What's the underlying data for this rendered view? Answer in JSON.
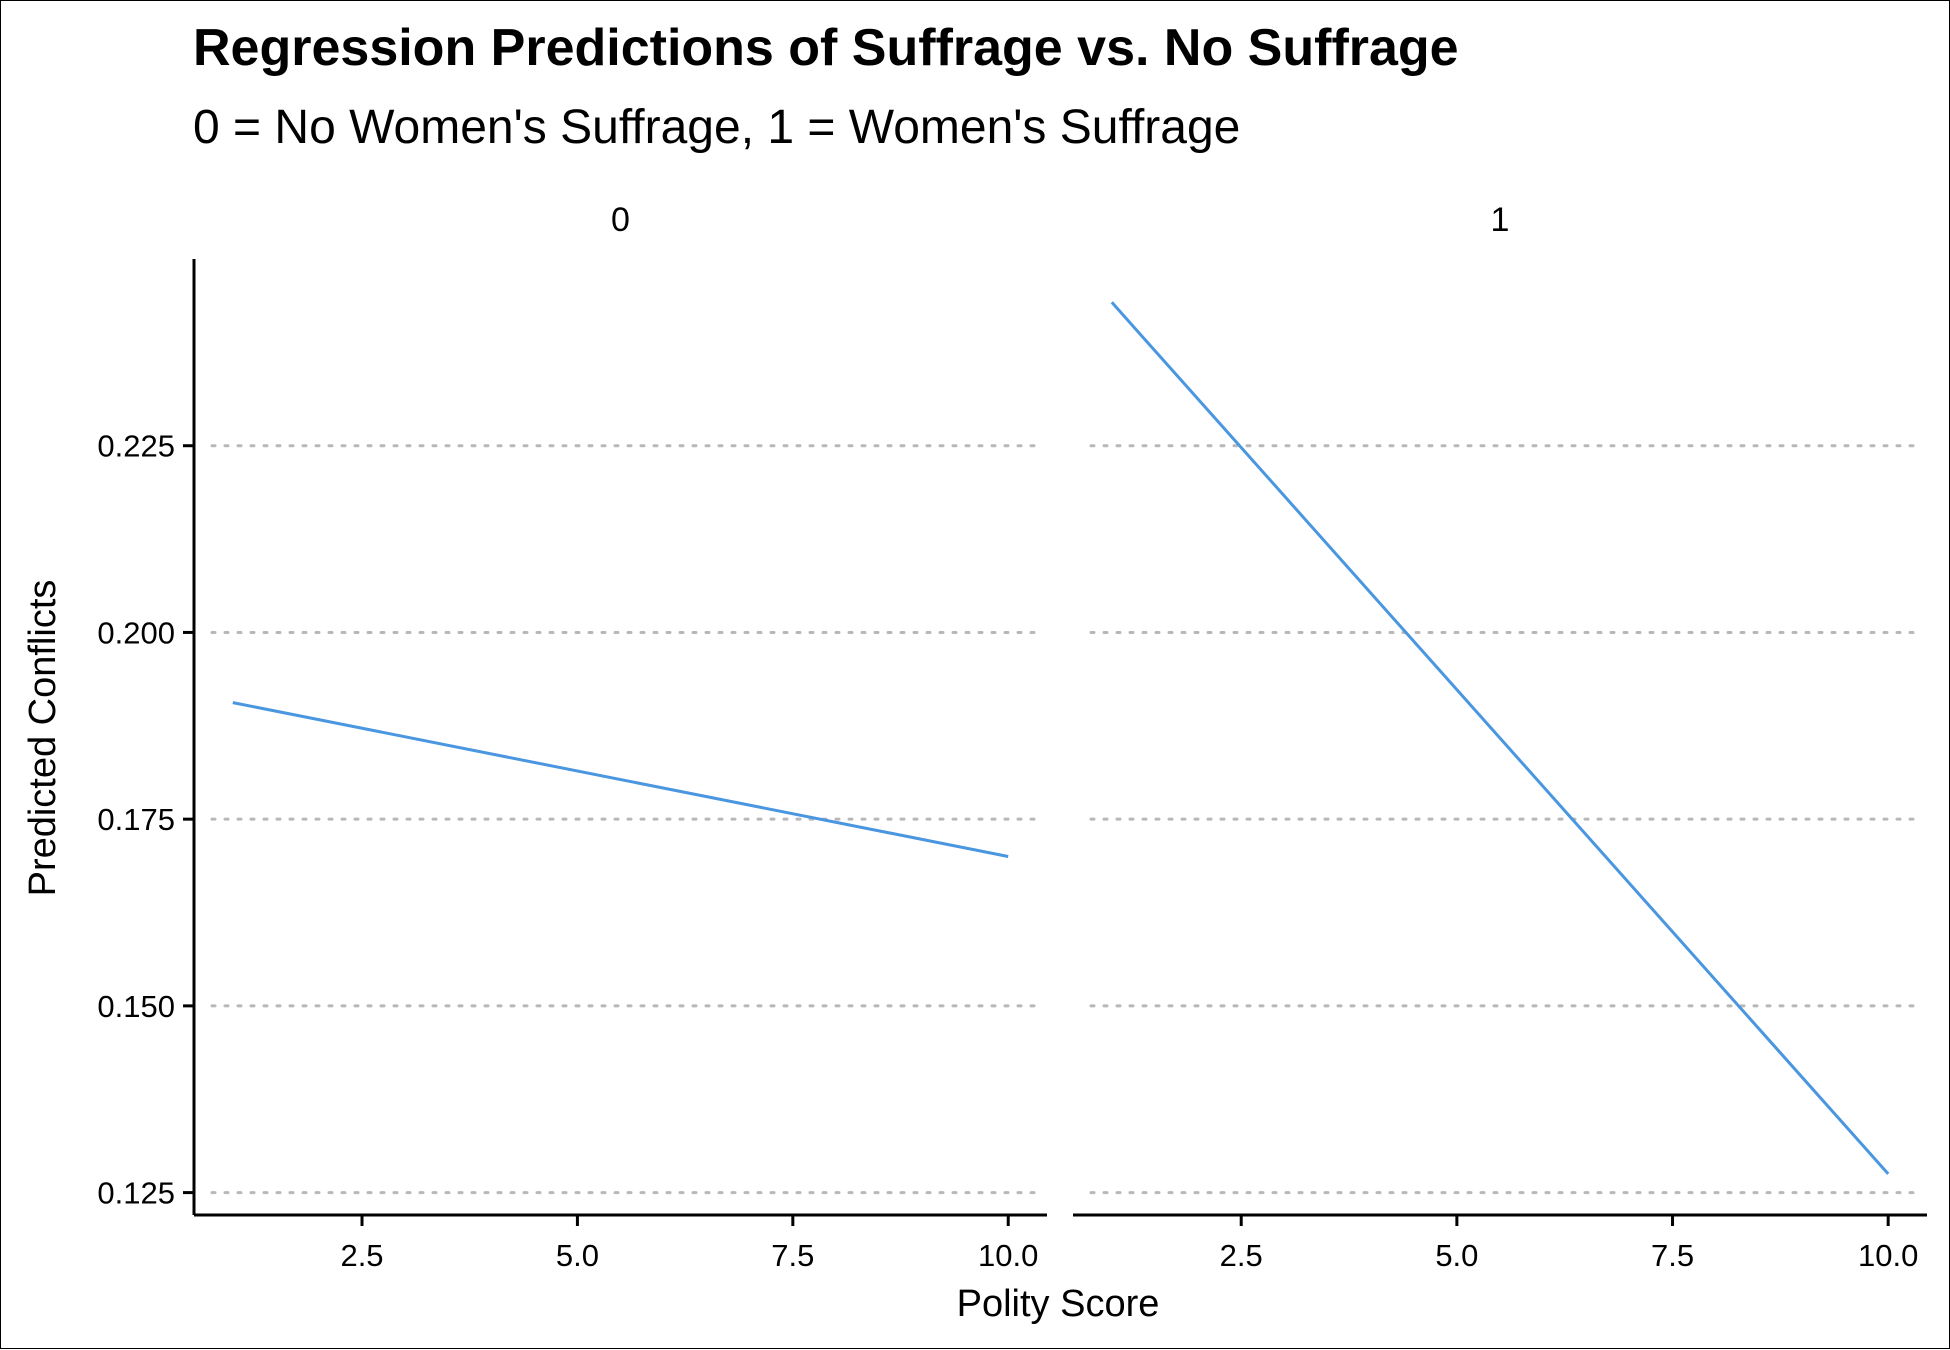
{
  "chart_data": {
    "type": "line",
    "title": "Regression Predictions of Suffrage vs. No Suffrage",
    "subtitle": "0 = No Women's Suffrage, 1 = Women's Suffrage",
    "xlabel": "Polity Score",
    "ylabel": "Predicted Conflicts",
    "xlim": [
      0.55,
      10.45
    ],
    "ylim": [
      0.122,
      0.25
    ],
    "x_ticks": [
      2.5,
      5.0,
      7.5,
      10.0
    ],
    "x_tick_labels": [
      "2.5",
      "5.0",
      "7.5",
      "10.0"
    ],
    "y_ticks": [
      0.125,
      0.15,
      0.175,
      0.2,
      0.225
    ],
    "y_tick_labels": [
      "0.125",
      "0.150",
      "0.175",
      "0.200",
      "0.225"
    ],
    "grid": "horizontal dotted",
    "line_color": "#4a96e0",
    "panels": [
      {
        "facet": "0",
        "x": [
          1,
          10
        ],
        "y": [
          0.1906,
          0.17
        ]
      },
      {
        "facet": "1",
        "x": [
          1,
          10
        ],
        "y": [
          0.2442,
          0.1275
        ]
      }
    ]
  }
}
